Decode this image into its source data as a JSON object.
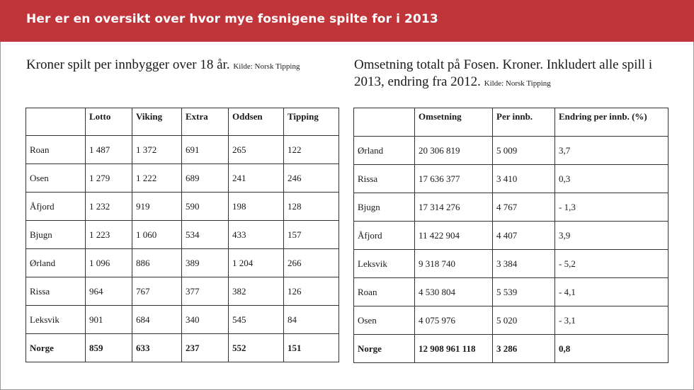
{
  "banner": {
    "title": "Her er en oversikt over hvor mye fosnigene spilte for i 2013"
  },
  "left": {
    "heading": "Kroner spilt per innbygger over 18 år.",
    "source": "Kilde: Norsk Tipping",
    "columns": [
      "",
      "Lotto",
      "Viking",
      "Extra",
      "Oddsen",
      "Tipping"
    ],
    "rows": [
      [
        "Roan",
        "1 487",
        "1 372",
        "691",
        "265",
        "122"
      ],
      [
        "Osen",
        "1 279",
        "1 222",
        "689",
        "241",
        "246"
      ],
      [
        "Åfjord",
        "1 232",
        "919",
        "590",
        "198",
        "128"
      ],
      [
        "Bjugn",
        "1 223",
        "1 060",
        "534",
        "433",
        "157"
      ],
      [
        "Ørland",
        "1 096",
        "886",
        "389",
        "1 204",
        "266"
      ],
      [
        "Rissa",
        "964",
        "767",
        "377",
        "382",
        "126"
      ],
      [
        "Leksvik",
        "901",
        "684",
        "340",
        "545",
        "84"
      ],
      [
        "Norge",
        "859",
        "633",
        "237",
        "552",
        "151"
      ]
    ]
  },
  "right": {
    "heading": "Omsetning totalt på Fosen. Kroner. Inkludert alle spill i 2013, endring fra 2012.",
    "source": "Kilde: Norsk Tipping",
    "columns": [
      "",
      "Omsetning",
      "Per innb.",
      "Endring per innb. (%)"
    ],
    "rows": [
      [
        "Ørland",
        "20 306 819",
        "5 009",
        "3,7"
      ],
      [
        "Rissa",
        "17 636 377",
        "3 410",
        "0,3"
      ],
      [
        "Bjugn",
        "17 314 276",
        "4 767",
        "- 1,3"
      ],
      [
        "Åfjord",
        "11 422 904",
        "4 407",
        "3,9"
      ],
      [
        "Leksvik",
        "9 318 740",
        "3 384",
        "- 5,2"
      ],
      [
        "Roan",
        "4 530 804",
        "5 539",
        "- 4,1"
      ],
      [
        "Osen",
        "4 075 976",
        "5 020",
        "- 3,1"
      ],
      [
        "Norge",
        "12 908 961 118",
        "3 286",
        "0,8"
      ]
    ]
  },
  "colors": {
    "banner": "#c0353a",
    "banner_text": "#ffffff",
    "text": "#1a1a1a",
    "border": "#333333"
  }
}
